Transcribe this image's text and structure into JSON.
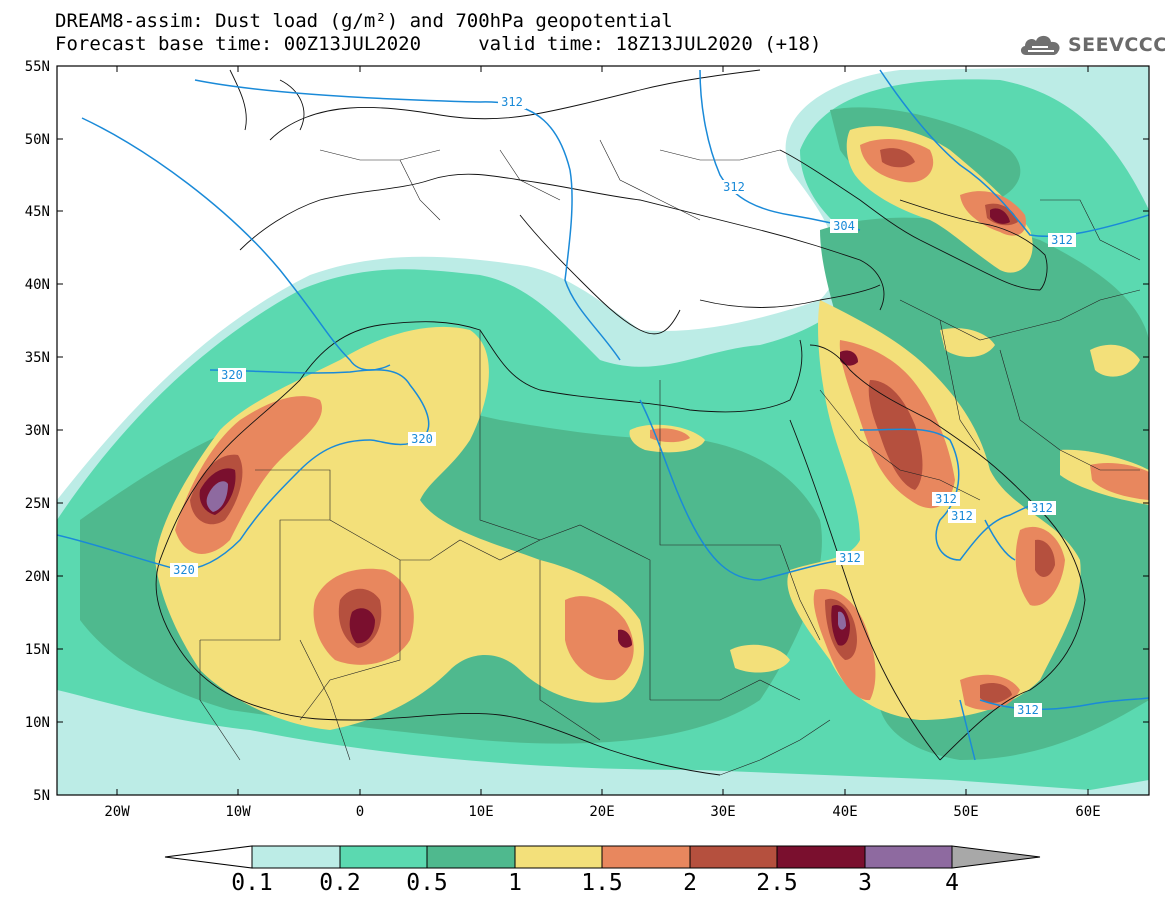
{
  "title": {
    "line1": "DREAM8-assim: Dust load (g/m²) and 700hPa geopotential",
    "line2": "Forecast base time: 00Z13JUL2020     valid time: 18Z13JUL2020 (+18)"
  },
  "logo": {
    "text": "SEEVCCC",
    "icon": "cloud-icon"
  },
  "map": {
    "lat_labels": [
      "55N",
      "50N",
      "45N",
      "40N",
      "35N",
      "30N",
      "25N",
      "20N",
      "15N",
      "10N",
      "5N"
    ],
    "lon_labels": [
      "20W",
      "10W",
      "0",
      "10E",
      "20E",
      "30E",
      "40E",
      "50E",
      "60E"
    ],
    "contour_labels": [
      "312",
      "320",
      "320",
      "320",
      "312",
      "304",
      "312",
      "312",
      "312",
      "312",
      "312",
      "312"
    ],
    "contour_color": "#1a8ad8"
  },
  "colorbar": {
    "ticks": [
      "0.1",
      "0.2",
      "0.5",
      "1",
      "1.5",
      "2",
      "2.5",
      "3",
      "4"
    ],
    "colors": [
      "#ffffff",
      "#bcece6",
      "#5bd9b0",
      "#4fb98e",
      "#f3e07a",
      "#e8875e",
      "#b5503e",
      "#7a0f2e",
      "#8e6aa0",
      "#a8a8a8"
    ]
  }
}
